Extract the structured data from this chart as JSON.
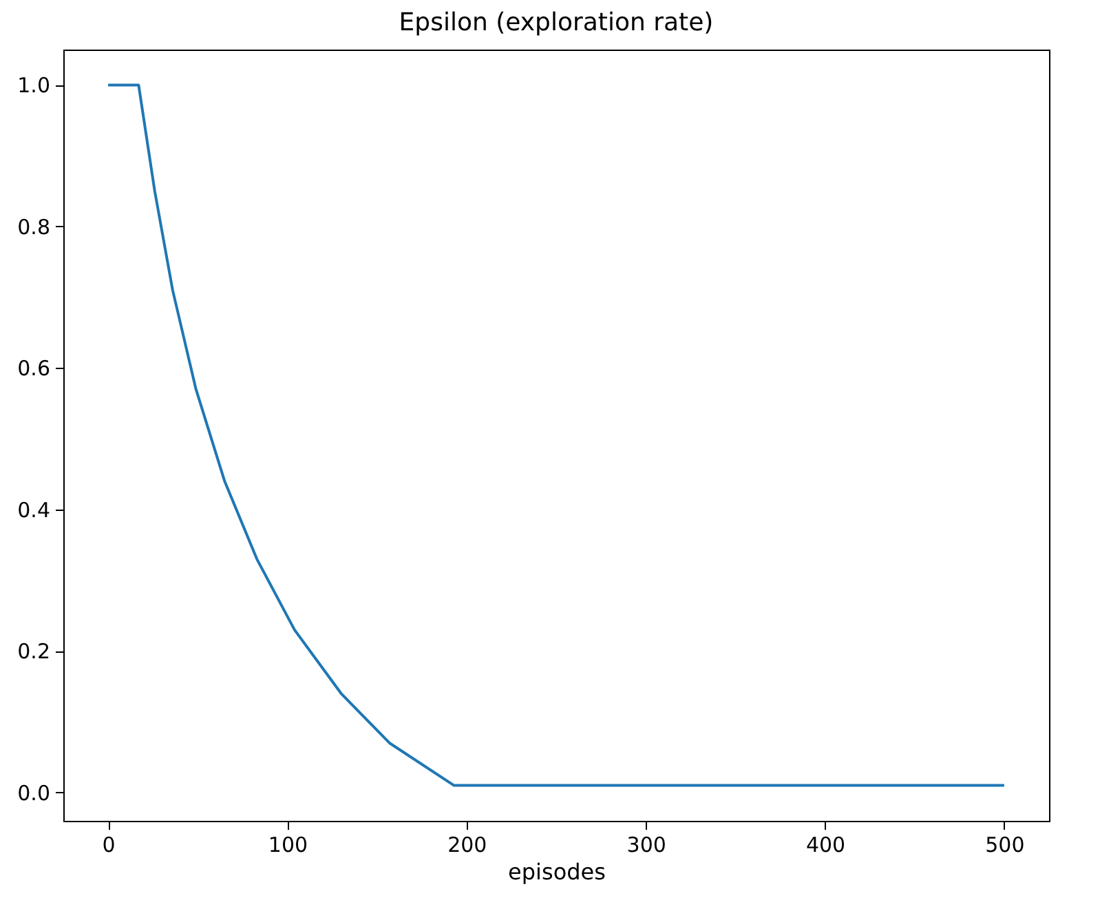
{
  "chart_data": {
    "type": "line",
    "title": "Epsilon (exploration rate)",
    "xlabel": "episodes",
    "x": [
      0,
      17,
      26,
      36,
      49,
      65,
      83,
      104,
      130,
      157,
      193,
      500
    ],
    "series": [
      {
        "color": "#1f77b4",
        "values": [
          1.0,
          1.0,
          0.85,
          0.71,
          0.57,
          0.44,
          0.33,
          0.23,
          0.14,
          0.07,
          0.01,
          0.01
        ]
      }
    ],
    "xlim": [
      -25,
      525
    ],
    "xticks": [
      0,
      100,
      200,
      300,
      400,
      500
    ],
    "ylim": [
      -0.04,
      1.05
    ],
    "yticks": [
      {
        "value": 0,
        "label": "0.0"
      },
      {
        "value": 0.2,
        "label": "0.2"
      },
      {
        "value": 0.4,
        "label": "0.4"
      },
      {
        "value": 0.6,
        "label": "0.6"
      },
      {
        "value": 0.8,
        "label": "0.8"
      },
      {
        "value": 1,
        "label": "1.0"
      }
    ],
    "grid": false,
    "marker": "none",
    "line_style": "solid"
  }
}
